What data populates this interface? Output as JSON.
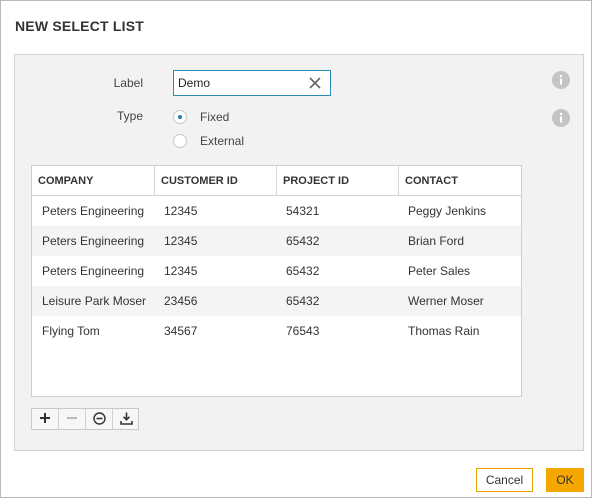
{
  "dialog": {
    "title": "NEW SELECT LIST"
  },
  "form": {
    "label_caption": "Label",
    "label_value": "Demo",
    "type_caption": "Type",
    "type_options": [
      {
        "label": "Fixed",
        "checked": true
      },
      {
        "label": "External",
        "checked": false
      }
    ]
  },
  "grid": {
    "columns": [
      "COMPANY",
      "CUSTOMER ID",
      "PROJECT ID",
      "CONTACT"
    ],
    "rows": [
      [
        "Peters Engineering",
        "12345",
        "54321",
        "Peggy Jenkins"
      ],
      [
        "Peters Engineering",
        "12345",
        "65432",
        "Brian Ford"
      ],
      [
        "Peters Engineering",
        "12345",
        "65432",
        "Peter Sales"
      ],
      [
        "Leisure Park Moser",
        "23456",
        "65432",
        "Werner Moser"
      ],
      [
        "Flying Tom",
        "34567",
        "76543",
        "Thomas Rain"
      ]
    ]
  },
  "toolbar": {
    "buttons": [
      "add-icon",
      "remove-icon",
      "clear-icon",
      "import-icon"
    ]
  },
  "footer": {
    "cancel_label": "Cancel",
    "ok_label": "OK"
  },
  "colors": {
    "accent": "#1e7fb8",
    "ok_button": "#f7a800",
    "cancel_border": "#e8a200",
    "panel_background": "#f2f2f2"
  }
}
